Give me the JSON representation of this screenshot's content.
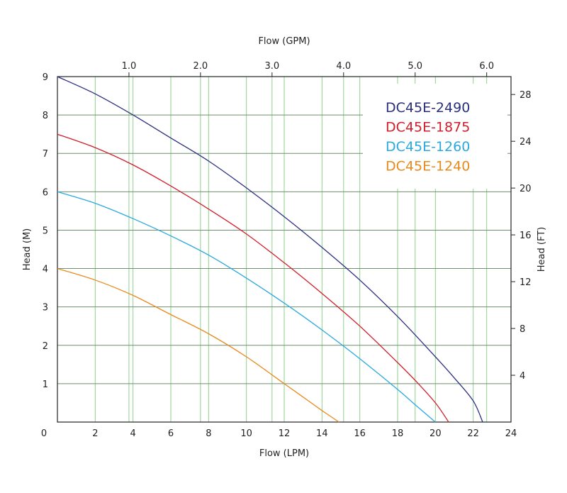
{
  "chart_data": {
    "type": "line",
    "title": "",
    "xlabel_bottom": "Flow (LPM)",
    "xlabel_top": "Flow (GPM)",
    "ylabel_left": "Head (M)",
    "ylabel_right": "Head (FT)",
    "xlim": [
      0,
      24
    ],
    "ylim": [
      0,
      9
    ],
    "x_ticks": [
      2,
      4,
      6,
      8,
      10,
      12,
      14,
      16,
      18,
      20,
      22,
      24
    ],
    "x_tick_labels": [
      "2",
      "4",
      "6",
      "8",
      "10",
      "12",
      "14",
      "16",
      "18",
      "20",
      "22",
      "24"
    ],
    "origin_label": "0",
    "y_ticks": [
      1,
      2,
      3,
      4,
      5,
      6,
      7,
      8,
      9
    ],
    "y_tick_labels": [
      "1",
      "2",
      "3",
      "4",
      "5",
      "6",
      "7",
      "8",
      "9"
    ],
    "top_ticks_gpm": [
      1.0,
      2.0,
      3.0,
      4.0,
      5.0,
      6.0
    ],
    "top_tick_labels": [
      "1.0",
      "2.0",
      "3.0",
      "4.0",
      "5.0",
      "6.0"
    ],
    "right_ticks_ft": [
      4,
      8,
      12,
      16,
      20,
      24,
      28
    ],
    "right_tick_labels": [
      "4",
      "8",
      "12",
      "16",
      "20",
      "24",
      "28"
    ],
    "grid": true,
    "legend_position": "top-right",
    "colors": {
      "grid_minor": "#8fd08f",
      "grid_major": "#6e8f6e",
      "axis": "#222222"
    },
    "series": [
      {
        "name": "DC45E-2490",
        "color": "#2b2f7f",
        "x": [
          0,
          2,
          4,
          6,
          8,
          10,
          12,
          14,
          16,
          18,
          20,
          21,
          22,
          22.5
        ],
        "y": [
          9.0,
          8.55,
          8.0,
          7.4,
          6.8,
          6.1,
          5.35,
          4.55,
          3.7,
          2.75,
          1.7,
          1.15,
          0.55,
          0.0
        ]
      },
      {
        "name": "DC45E-1875",
        "color": "#d21e2b",
        "x": [
          0,
          2,
          4,
          6,
          8,
          10,
          12,
          14,
          16,
          18,
          19,
          20,
          20.7
        ],
        "y": [
          7.5,
          7.15,
          6.7,
          6.15,
          5.55,
          4.9,
          4.15,
          3.35,
          2.5,
          1.55,
          1.05,
          0.5,
          0.0
        ]
      },
      {
        "name": "DC45E-1260",
        "color": "#29a9df",
        "x": [
          0,
          2,
          4,
          6,
          8,
          10,
          12,
          14,
          16,
          18,
          19,
          20
        ],
        "y": [
          6.0,
          5.7,
          5.3,
          4.85,
          4.35,
          3.75,
          3.1,
          2.4,
          1.65,
          0.85,
          0.42,
          0.0
        ]
      },
      {
        "name": "DC45E-1240",
        "color": "#e98a1c",
        "x": [
          0,
          2,
          4,
          6,
          8,
          10,
          12,
          13,
          14,
          14.9
        ],
        "y": [
          4.0,
          3.7,
          3.3,
          2.8,
          2.3,
          1.7,
          1.0,
          0.65,
          0.3,
          0.0
        ]
      }
    ]
  }
}
